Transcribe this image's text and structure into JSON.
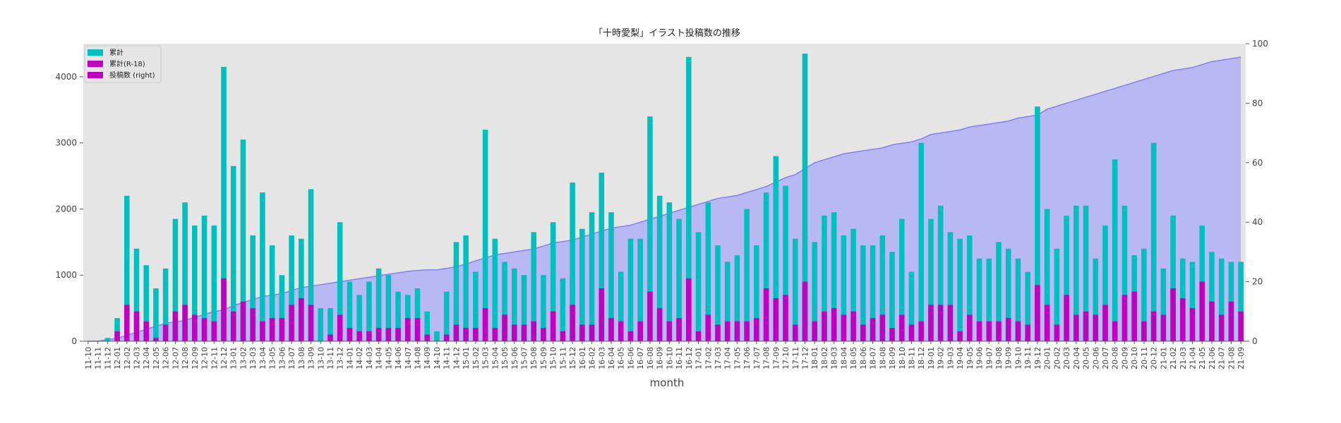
{
  "chart_data": {
    "type": "bar",
    "title": "「十時愛梨」イラスト投稿数の推移",
    "xlabel": "month",
    "ylabel": "",
    "ylim": [
      0,
      4500
    ],
    "y2lim": [
      0,
      100
    ],
    "yticks": [
      0,
      1000,
      2000,
      3000,
      4000
    ],
    "y2ticks": [
      0,
      20,
      40,
      60,
      80,
      100
    ],
    "grid": false,
    "legend_position": "top-left",
    "colors": {
      "cumulative": "#00bfbf",
      "r18": "#bf00bf",
      "area": "#9999ff",
      "plot_bg": "#e5e5e5"
    },
    "categories": [
      "11-10",
      "11-11",
      "11-12",
      "12-01",
      "12-02",
      "12-03",
      "12-04",
      "12-05",
      "12-06",
      "12-07",
      "12-08",
      "12-09",
      "12-10",
      "12-11",
      "12-12",
      "13-01",
      "13-02",
      "13-03",
      "13-04",
      "13-05",
      "13-06",
      "13-07",
      "13-08",
      "13-09",
      "13-10",
      "13-11",
      "13-12",
      "14-01",
      "14-02",
      "14-03",
      "14-04",
      "14-05",
      "14-06",
      "14-07",
      "14-08",
      "14-09",
      "14-10",
      "14-11",
      "14-12",
      "15-01",
      "15-02",
      "15-03",
      "15-04",
      "15-05",
      "15-06",
      "15-07",
      "15-08",
      "15-09",
      "15-10",
      "15-11",
      "15-12",
      "16-01",
      "16-02",
      "16-03",
      "16-04",
      "16-05",
      "16-06",
      "16-07",
      "16-08",
      "16-09",
      "16-10",
      "16-11",
      "16-12",
      "17-01",
      "17-02",
      "17-03",
      "17-04",
      "17-05",
      "17-06",
      "17-07",
      "17-08",
      "17-09",
      "17-10",
      "17-11",
      "17-12",
      "18-01",
      "18-02",
      "18-03",
      "18-04",
      "18-05",
      "18-06",
      "18-07",
      "18-08",
      "18-09",
      "18-10",
      "18-11",
      "18-12",
      "19-01",
      "19-02",
      "19-03",
      "19-04",
      "19-05",
      "19-06",
      "19-07",
      "19-08",
      "19-09",
      "19-10",
      "19-11",
      "19-12",
      "20-01",
      "20-02",
      "20-03",
      "20-04",
      "20-05",
      "20-06",
      "20-07",
      "20-08",
      "20-09",
      "20-10",
      "20-11",
      "20-12",
      "21-01",
      "21-02",
      "21-03",
      "21-04",
      "21-05",
      "21-06",
      "21-07",
      "21-08",
      "21-09"
    ],
    "series": [
      {
        "name": "累計",
        "axis": "left",
        "kind": "bar",
        "values": [
          0,
          0,
          50,
          350,
          2200,
          1400,
          1150,
          800,
          1100,
          1850,
          2100,
          1750,
          1900,
          1750,
          4150,
          2650,
          3050,
          1600,
          2250,
          1450,
          1000,
          1600,
          1550,
          2300,
          500,
          500,
          1800,
          900,
          700,
          900,
          1100,
          1000,
          750,
          700,
          800,
          450,
          150,
          750,
          1500,
          1600,
          1050,
          3200,
          1550,
          1200,
          1100,
          1000,
          1650,
          1000,
          1800,
          950,
          2400,
          1700,
          1950,
          2550,
          1950,
          1050,
          1550,
          1550,
          3400,
          2200,
          2100,
          1850,
          4300,
          1650,
          2100,
          1450,
          1200,
          1300,
          2000,
          1450,
          2250,
          2800,
          2350,
          1550,
          4350,
          1500,
          1900,
          1950,
          1600,
          1700,
          1450,
          1450,
          1600,
          1350,
          1850,
          1050,
          3000,
          1850,
          2050,
          1650,
          1550,
          1600,
          1250,
          1250,
          1500,
          1400,
          1250,
          1050,
          3550,
          2000,
          1400,
          1900,
          2050,
          2050,
          1250,
          1750,
          2750,
          2050,
          1300,
          1400,
          3000,
          1100,
          1900,
          1250,
          1200,
          1750,
          1350,
          1250,
          1200,
          1200
        ]
      },
      {
        "name": "累計(R-18)",
        "axis": "left",
        "kind": "bar",
        "values": [
          0,
          0,
          0,
          150,
          550,
          450,
          300,
          50,
          250,
          450,
          550,
          400,
          350,
          300,
          950,
          450,
          600,
          500,
          300,
          350,
          350,
          550,
          650,
          550,
          0,
          100,
          400,
          200,
          150,
          150,
          200,
          200,
          200,
          350,
          350,
          100,
          0,
          100,
          250,
          200,
          200,
          500,
          200,
          400,
          250,
          250,
          300,
          200,
          450,
          150,
          550,
          250,
          250,
          800,
          350,
          300,
          150,
          300,
          750,
          500,
          300,
          350,
          950,
          150,
          400,
          250,
          300,
          300,
          300,
          350,
          800,
          650,
          700,
          250,
          900,
          300,
          450,
          500,
          400,
          450,
          250,
          350,
          400,
          200,
          400,
          250,
          300,
          550,
          550,
          550,
          150,
          400,
          300,
          300,
          300,
          350,
          300,
          250,
          850,
          550,
          250,
          700,
          400,
          450,
          400,
          550,
          300,
          700,
          750,
          300,
          450,
          400,
          800,
          650,
          500,
          900,
          600,
          400,
          600,
          450
        ]
      },
      {
        "name": "投稿数 (right)",
        "axis": "right",
        "kind": "area",
        "values": [
          0,
          0,
          0.5,
          1,
          2,
          3,
          4,
          5,
          6,
          6.5,
          7,
          8,
          9,
          10,
          10.5,
          12,
          13,
          14,
          15,
          15.5,
          16,
          17,
          18,
          18.5,
          19,
          19.5,
          20,
          20.5,
          21,
          21.5,
          22,
          22.5,
          23,
          23.5,
          23.8,
          24,
          24,
          24.5,
          25,
          26,
          27,
          28,
          29,
          29.5,
          30,
          30.5,
          31,
          32,
          33,
          33.5,
          34,
          35,
          36,
          37,
          38,
          38.5,
          39,
          40,
          41,
          42,
          43,
          44,
          45,
          46,
          47,
          48,
          48.5,
          49,
          50,
          51,
          52,
          53.5,
          55,
          56,
          58,
          60,
          61,
          62,
          63,
          63.5,
          64,
          64.5,
          65,
          66,
          66.5,
          67,
          68,
          69.5,
          70,
          70.5,
          71,
          72,
          72.5,
          73,
          73.5,
          74,
          75,
          75.5,
          76,
          78,
          79,
          80,
          81,
          82,
          83,
          84,
          85,
          86,
          87,
          88,
          89,
          90,
          91,
          91.5,
          92,
          93,
          94,
          94.5,
          95,
          95.5
        ]
      }
    ]
  },
  "legend": {
    "items": [
      "累計",
      "累計(R-18)",
      "投稿数 (right)"
    ]
  }
}
